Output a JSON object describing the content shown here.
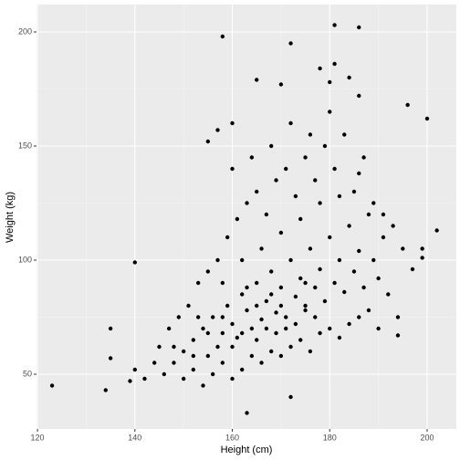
{
  "chart_data": {
    "type": "scatter",
    "x_label": "Height (cm)",
    "y_label": "Weight (kg)",
    "xlim": [
      119.8,
      206
    ],
    "ylim": [
      26,
      212
    ],
    "xticks": [
      120,
      140,
      160,
      180,
      200
    ],
    "yticks": [
      50,
      100,
      150,
      200
    ],
    "grid": true,
    "color": "#000000",
    "series": [
      {
        "x": [
          123,
          134,
          135,
          135,
          140,
          158,
          181,
          186,
          172,
          165,
          170,
          200,
          196,
          178,
          181,
          184,
          186,
          180,
          202,
          199,
          199,
          197,
          194,
          194,
          163,
          172,
          155,
          157,
          160,
          150,
          152,
          154,
          155,
          156,
          157,
          158,
          159,
          160,
          161,
          162,
          163,
          164,
          165,
          166,
          167,
          168,
          169,
          170,
          171,
          172,
          173,
          174,
          175,
          176,
          177,
          178,
          179,
          180,
          181,
          182,
          183,
          184,
          185,
          186,
          187,
          188,
          189,
          190,
          191,
          148,
          146,
          145,
          147,
          149,
          151,
          153,
          155,
          157,
          159,
          161,
          163,
          165,
          167,
          169,
          171,
          173,
          175,
          177,
          179,
          181,
          183,
          185,
          187,
          189,
          191,
          193,
          195,
          150,
          152,
          154,
          156,
          158,
          160,
          162,
          164,
          166,
          168,
          170,
          172,
          174,
          176,
          178,
          180,
          182,
          184,
          186,
          188,
          190,
          192,
          153,
          158,
          162,
          166,
          170,
          174,
          178,
          182,
          186,
          160,
          164,
          168,
          172,
          176,
          180,
          165,
          167,
          169,
          171,
          173,
          175,
          165,
          170,
          168,
          163,
          175,
          177,
          160,
          162,
          158,
          155,
          152,
          148,
          144,
          142,
          140,
          139
        ],
        "values": [
          45,
          43,
          57,
          70,
          99,
          198,
          203,
          202,
          195,
          179,
          177,
          162,
          168,
          184,
          186,
          180,
          172,
          178,
          113,
          105,
          101,
          96,
          75,
          67,
          33,
          40,
          152,
          157,
          160,
          60,
          65,
          70,
          58,
          75,
          62,
          68,
          80,
          72,
          66,
          85,
          78,
          70,
          90,
          74,
          82,
          95,
          77,
          88,
          70,
          100,
          84,
          92,
          78,
          105,
          88,
          96,
          82,
          110,
          90,
          100,
          86,
          115,
          95,
          104,
          88,
          120,
          100,
          92,
          110,
          55,
          50,
          62,
          70,
          75,
          80,
          90,
          95,
          100,
          110,
          118,
          125,
          130,
          120,
          135,
          140,
          128,
          145,
          135,
          150,
          140,
          155,
          130,
          145,
          125,
          120,
          115,
          105,
          48,
          52,
          45,
          50,
          55,
          48,
          52,
          58,
          55,
          60,
          58,
          62,
          65,
          60,
          68,
          70,
          66,
          72,
          75,
          78,
          70,
          85,
          75,
          90,
          100,
          105,
          112,
          118,
          125,
          128,
          138,
          140,
          145,
          150,
          160,
          155,
          165,
          65,
          70,
          68,
          75,
          72,
          80,
          80,
          80,
          85,
          88,
          90,
          75,
          62,
          68,
          75,
          68,
          58,
          62,
          55,
          48,
          52,
          47
        ]
      }
    ]
  }
}
